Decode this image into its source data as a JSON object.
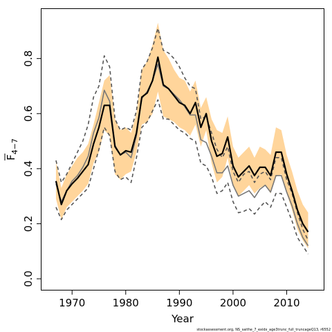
{
  "chart_data": {
    "type": "line",
    "xlabel": "Year",
    "ylabel": "F",
    "ylabel_subscript": "4−7",
    "xlim": [
      1964.3,
      2016.9
    ],
    "ylim": [
      -0.04,
      0.98
    ],
    "xticks": [
      1970,
      1980,
      1990,
      2000,
      2010
    ],
    "yticks": [
      "0.0",
      "0.2",
      "0.4",
      "0.6",
      "0.8"
    ],
    "x": [
      1967,
      1968,
      1969,
      1970,
      1971,
      1972,
      1973,
      1974,
      1975,
      1976,
      1977,
      1978,
      1979,
      1980,
      1981,
      1982,
      1983,
      1984,
      1985,
      1986,
      1987,
      1988,
      1989,
      1990,
      1991,
      1992,
      1993,
      1994,
      1995,
      1996,
      1997,
      1998,
      1999,
      2000,
      2001,
      2002,
      2003,
      2004,
      2005,
      2006,
      2007,
      2008,
      2009,
      2010,
      2011,
      2012,
      2013,
      2014
    ],
    "series": [
      {
        "role": "estimate",
        "color": "#000000",
        "values": [
          0.355,
          0.27,
          0.32,
          0.345,
          0.365,
          0.39,
          0.415,
          0.49,
          0.55,
          0.63,
          0.63,
          0.48,
          0.45,
          0.465,
          0.46,
          0.53,
          0.66,
          0.675,
          0.72,
          0.805,
          0.705,
          0.69,
          0.665,
          0.64,
          0.63,
          0.6,
          0.64,
          0.55,
          0.6,
          0.5,
          0.445,
          0.455,
          0.515,
          0.41,
          0.37,
          0.39,
          0.41,
          0.375,
          0.405,
          0.405,
          0.375,
          0.46,
          0.46,
          0.38,
          0.32,
          0.25,
          0.2,
          0.17
        ]
      },
      {
        "role": "upper-bound",
        "color": "#ffd59b",
        "values": [
          0.425,
          0.33,
          0.38,
          0.41,
          0.44,
          0.46,
          0.49,
          0.56,
          0.64,
          0.72,
          0.74,
          0.58,
          0.54,
          0.55,
          0.53,
          0.6,
          0.76,
          0.79,
          0.85,
          0.93,
          0.83,
          0.8,
          0.76,
          0.73,
          0.72,
          0.68,
          0.72,
          0.62,
          0.66,
          0.58,
          0.54,
          0.53,
          0.59,
          0.48,
          0.44,
          0.46,
          0.48,
          0.44,
          0.48,
          0.47,
          0.45,
          0.55,
          0.54,
          0.45,
          0.39,
          0.32,
          0.27,
          0.24
        ]
      },
      {
        "role": "lower-bound",
        "color": "#ffd59b",
        "values": [
          0.29,
          0.215,
          0.26,
          0.28,
          0.3,
          0.32,
          0.345,
          0.42,
          0.46,
          0.54,
          0.52,
          0.38,
          0.36,
          0.38,
          0.39,
          0.46,
          0.56,
          0.57,
          0.6,
          0.68,
          0.59,
          0.58,
          0.57,
          0.55,
          0.54,
          0.52,
          0.56,
          0.48,
          0.54,
          0.42,
          0.35,
          0.37,
          0.44,
          0.34,
          0.3,
          0.32,
          0.34,
          0.31,
          0.33,
          0.34,
          0.31,
          0.37,
          0.38,
          0.31,
          0.25,
          0.18,
          0.14,
          0.11
        ]
      },
      {
        "role": "retro-upper",
        "color": "#555555",
        "dash": true,
        "values": [
          0.43,
          0.35,
          0.38,
          0.42,
          0.46,
          0.5,
          0.56,
          0.66,
          0.7,
          0.81,
          0.77,
          0.58,
          0.54,
          0.55,
          0.54,
          0.61,
          0.76,
          0.79,
          0.84,
          0.91,
          0.83,
          0.82,
          0.8,
          0.77,
          0.73,
          0.7,
          0.69,
          0.58,
          0.59,
          0.53,
          0.47,
          0.44,
          0.48,
          0.39,
          0.35,
          0.38,
          0.39,
          0.35,
          0.38,
          0.39,
          0.36,
          0.44,
          0.44,
          0.36,
          0.31,
          0.24,
          0.18,
          0.14
        ]
      },
      {
        "role": "retro-lower",
        "color": "#555555",
        "dash": true,
        "values": [
          0.26,
          0.215,
          0.25,
          0.27,
          0.29,
          0.31,
          0.33,
          0.4,
          0.47,
          0.55,
          0.52,
          0.39,
          0.36,
          0.37,
          0.35,
          0.44,
          0.55,
          0.57,
          0.61,
          0.65,
          0.58,
          0.58,
          0.56,
          0.54,
          0.53,
          0.51,
          0.5,
          0.42,
          0.41,
          0.37,
          0.31,
          0.32,
          0.35,
          0.28,
          0.24,
          0.245,
          0.255,
          0.235,
          0.26,
          0.28,
          0.26,
          0.31,
          0.31,
          0.26,
          0.21,
          0.15,
          0.12,
          0.09
        ]
      },
      {
        "role": "retro-mean",
        "color": "#777777",
        "values": [
          0.345,
          0.28,
          0.32,
          0.355,
          0.375,
          0.405,
          0.445,
          0.53,
          0.585,
          0.685,
          0.645,
          0.485,
          0.45,
          0.46,
          0.44,
          0.52,
          0.655,
          0.68,
          0.72,
          0.78,
          0.7,
          0.69,
          0.67,
          0.65,
          0.625,
          0.595,
          0.595,
          0.505,
          0.495,
          0.445,
          0.385,
          0.385,
          0.41,
          0.34,
          0.3,
          0.31,
          0.32,
          0.295,
          0.325,
          0.34,
          0.315,
          0.375,
          0.375,
          0.315,
          0.265,
          0.2,
          0.15,
          0.12
        ]
      }
    ]
  },
  "footer": {
    "credit": "stockassessment.org,  NS_saithe_7_exidx_age3trunc_full_truncageQ13, r6552"
  }
}
